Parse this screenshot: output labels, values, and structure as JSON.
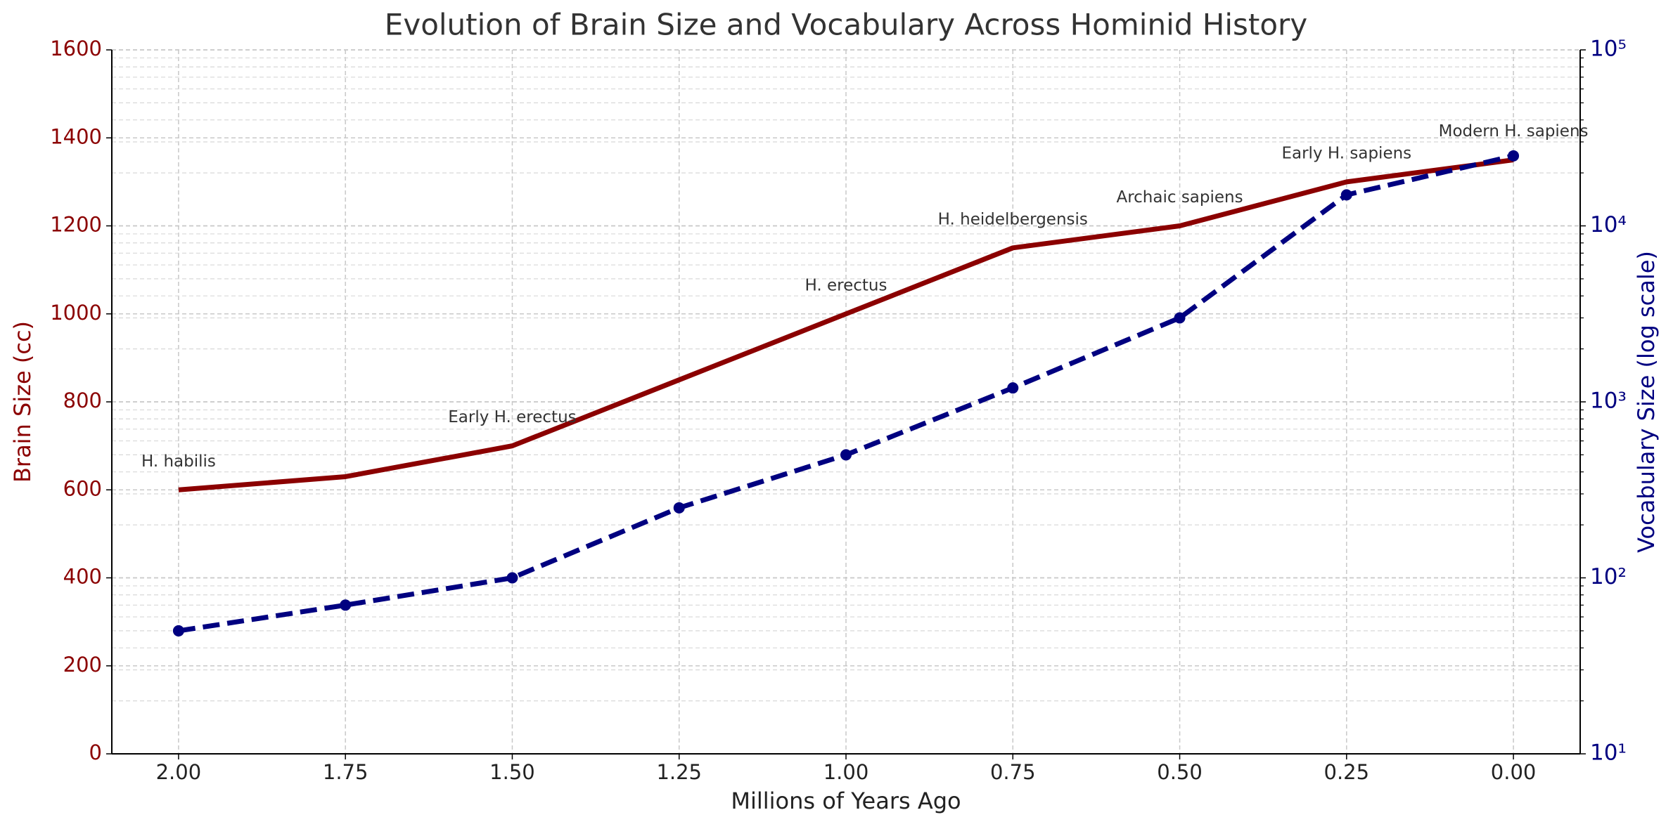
{
  "chart_data": {
    "type": "line",
    "title": "Evolution of Brain Size and Vocabulary Across Hominid History",
    "x_label": "Millions of Years Ago",
    "y_label": "Brain Size (cc)",
    "y2_label": "Vocabulary Size (log scale)",
    "x": [
      2.0,
      1.75,
      1.5,
      1.25,
      1.0,
      0.75,
      0.5,
      0.25,
      0.0
    ],
    "xlim": [
      2.1,
      -0.1
    ],
    "xticks": [
      {
        "value": 2.0,
        "label": "2.00"
      },
      {
        "value": 1.75,
        "label": "1.75"
      },
      {
        "value": 1.5,
        "label": "1.50"
      },
      {
        "value": 1.25,
        "label": "1.25"
      },
      {
        "value": 1.0,
        "label": "1.00"
      },
      {
        "value": 0.75,
        "label": "0.75"
      },
      {
        "value": 0.5,
        "label": "0.50"
      },
      {
        "value": 0.25,
        "label": "0.25"
      },
      {
        "value": 0.0,
        "label": "0.00"
      }
    ],
    "ylim": [
      0,
      1600
    ],
    "yticks": [
      0,
      200,
      400,
      600,
      800,
      1000,
      1200,
      1400,
      1600
    ],
    "y2lim": [
      10,
      100000
    ],
    "y2_log": true,
    "y2ticks": [
      {
        "value": 10,
        "label": "10¹"
      },
      {
        "value": 100,
        "label": "10²"
      },
      {
        "value": 1000,
        "label": "10³"
      },
      {
        "value": 10000,
        "label": "10⁴"
      },
      {
        "value": 100000,
        "label": "10⁵"
      }
    ],
    "grid": true,
    "series": [
      {
        "name": "Brain Size",
        "color": "#8b0000",
        "dash": false,
        "markers": false,
        "values": [
          600,
          630,
          700,
          850,
          1000,
          1150,
          1200,
          1300,
          1350
        ]
      },
      {
        "name": "Vocabulary Size",
        "color": "#000080",
        "dash": true,
        "markers": true,
        "axis": "y2",
        "values": [
          50,
          70,
          100,
          250,
          500,
          1200,
          3000,
          15000,
          25000
        ]
      }
    ],
    "annotations": [
      {
        "text": "H. habilis",
        "x": 2.0
      },
      {
        "text": "Early H. erectus",
        "x": 1.5
      },
      {
        "text": "H. erectus",
        "x": 1.0
      },
      {
        "text": "H. heidelbergensis",
        "x": 0.75
      },
      {
        "text": "Archaic sapiens",
        "x": 0.5
      },
      {
        "text": "Early H. sapiens",
        "x": 0.25
      },
      {
        "text": "Modern H. sapiens",
        "x": 0.0
      }
    ]
  }
}
